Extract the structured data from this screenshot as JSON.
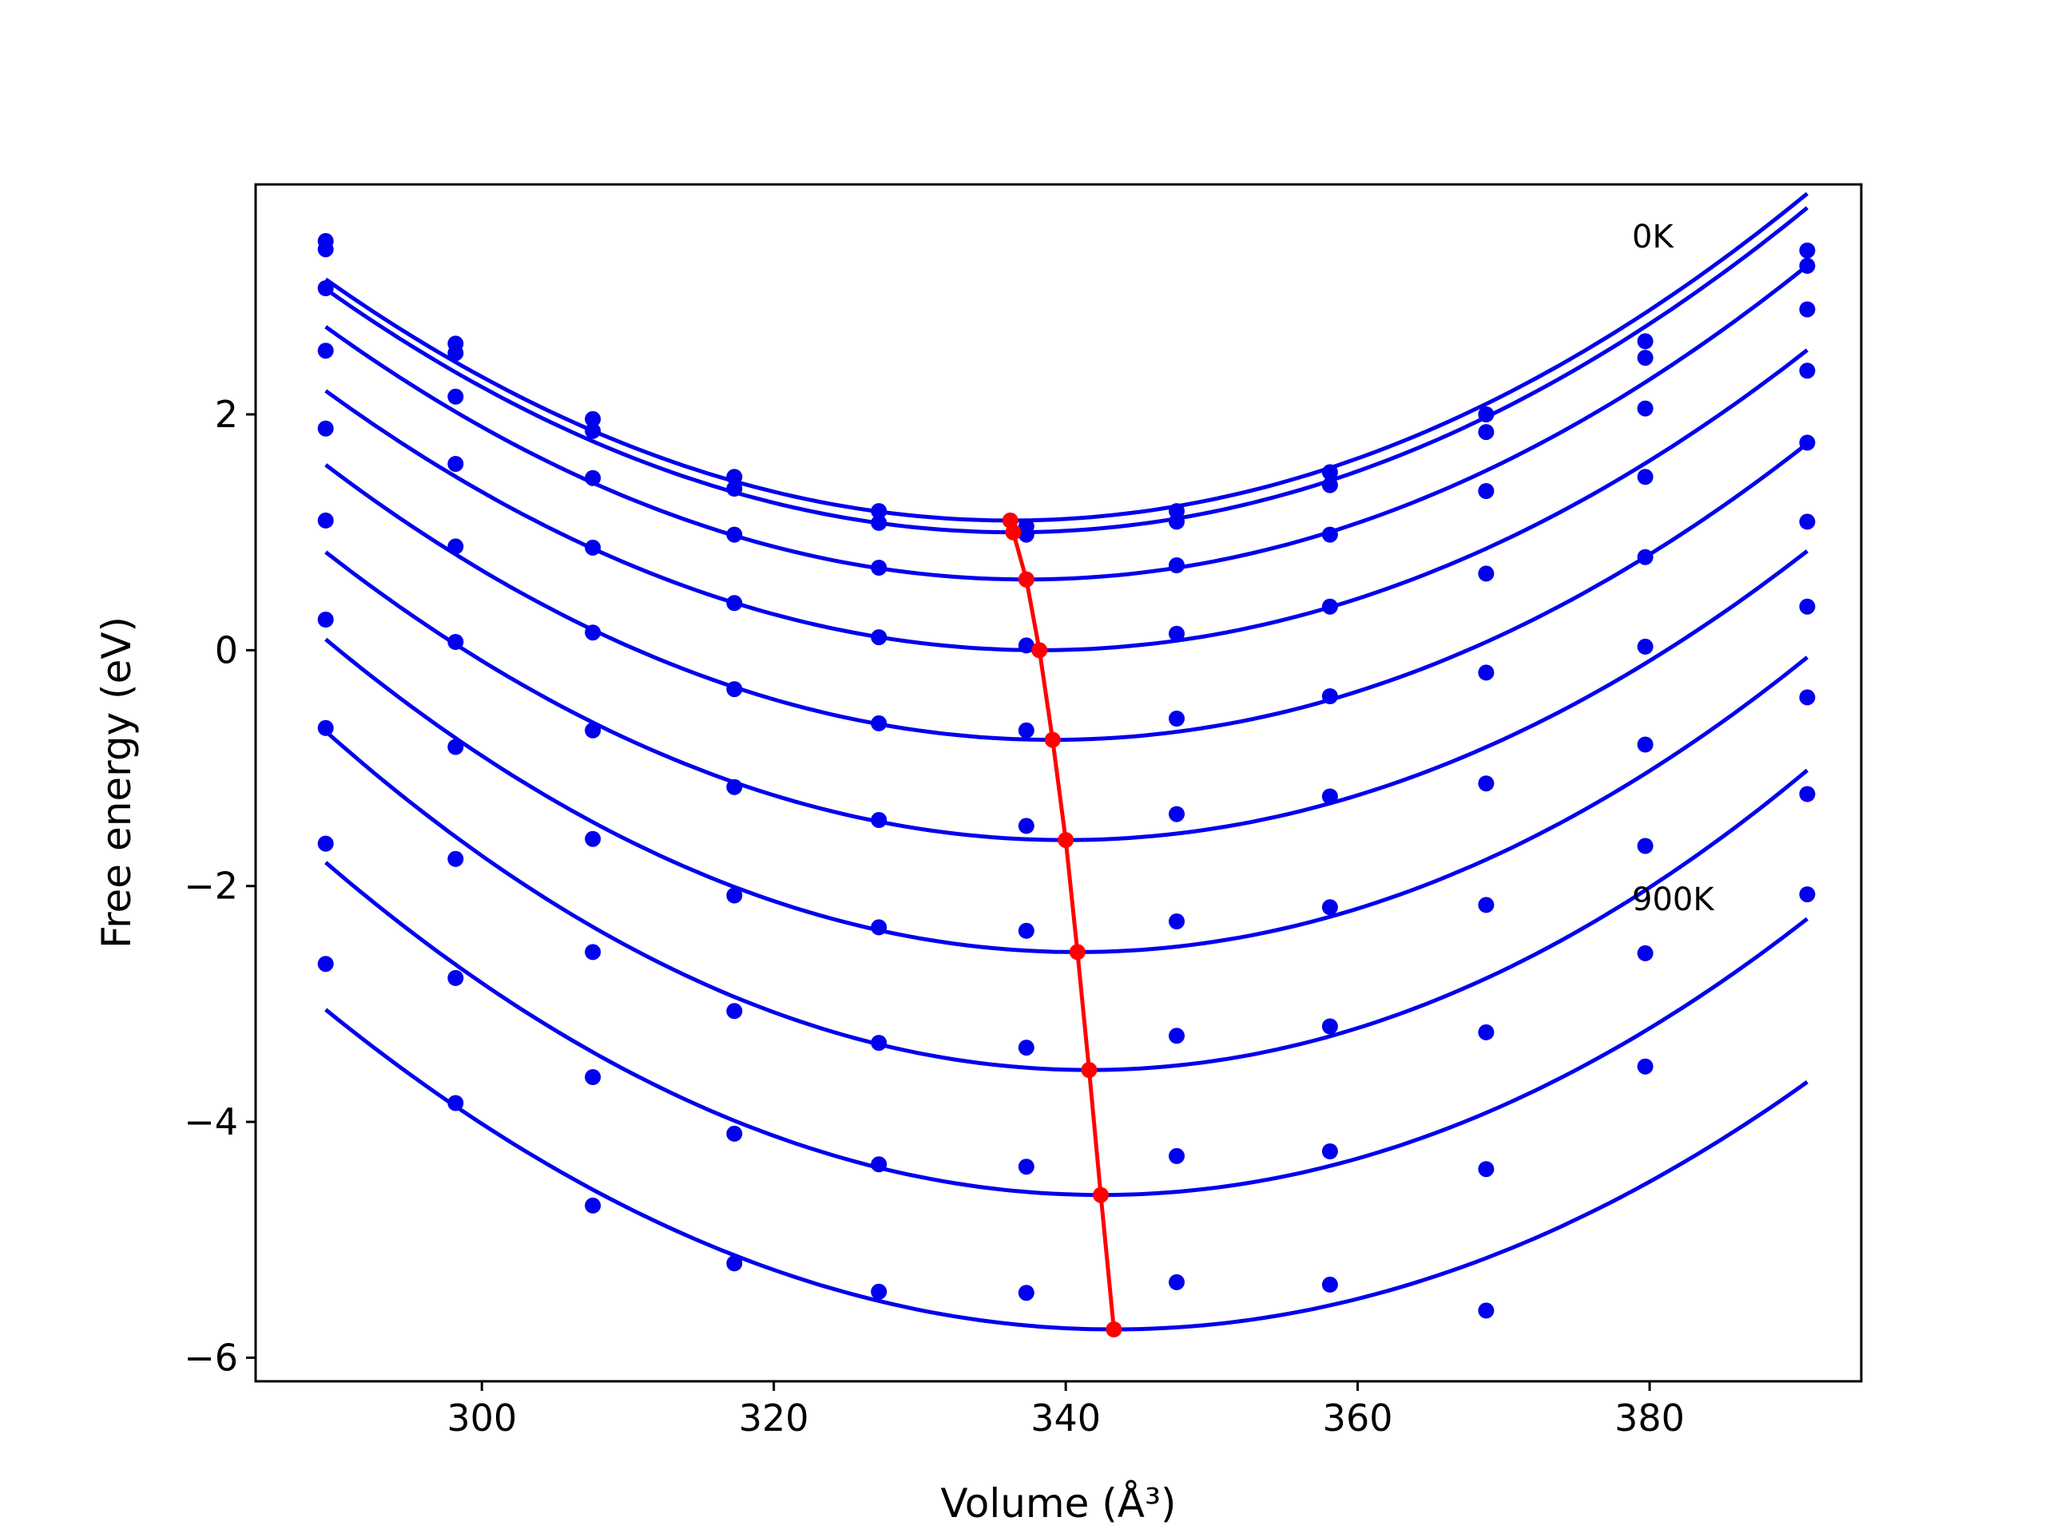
{
  "chart_data": {
    "type": "scatter",
    "title": "",
    "xlabel": "Volume",
    "xlabel_unit": "(Å³)",
    "ylabel": "Free energy (eV)",
    "xlim": [
      284.5,
      394.5
    ],
    "ylim": [
      -6.2,
      3.95
    ],
    "x_ticks": [
      300,
      320,
      340,
      360,
      380
    ],
    "x_tick_labels": [
      "300",
      "320",
      "340",
      "360",
      "380"
    ],
    "y_ticks": [
      2,
      0,
      -2,
      -4,
      -6
    ],
    "y_tick_labels": [
      "2",
      "0",
      "−2",
      "−4",
      "−6"
    ],
    "grid": false,
    "legend": "none",
    "colors": {
      "points": "#0000ee",
      "fits": "#0000ee",
      "minimum_line": "#ff0000",
      "frame": "#000000"
    },
    "annotations": [
      {
        "text": "0K",
        "x": 381.6,
        "y": 3.48
      },
      {
        "text": "900K",
        "x": 381.6,
        "y": -2.13
      }
    ],
    "volumes": [
      289.3,
      298.2,
      307.6,
      317.3,
      327.2,
      337.3,
      347.6,
      358.1,
      368.8,
      379.7,
      390.8
    ],
    "series": [
      {
        "values": [
          3.47,
          2.6,
          1.96,
          1.47,
          1.18,
          1.05,
          1.18,
          1.51,
          2.0,
          2.62,
          3.39
        ],
        "fit": {
          "x0": 336.2,
          "y0": 1.1,
          "a": 0.00093
        }
      },
      {
        "values": [
          3.4,
          2.52,
          1.86,
          1.37,
          1.08,
          0.98,
          1.09,
          1.4,
          1.85,
          2.48,
          3.26
        ],
        "fit": {
          "x0": 336.4,
          "y0": 1.0,
          "a": 0.00093
        }
      },
      {
        "values": [
          3.07,
          2.15,
          1.46,
          0.98,
          0.7,
          0.6,
          0.72,
          0.98,
          1.35,
          2.05,
          2.89
        ],
        "fit": {
          "x0": 337.3,
          "y0": 0.6,
          "a": 0.00093
        }
      },
      {
        "values": [
          2.54,
          1.58,
          0.87,
          0.4,
          0.11,
          0.04,
          0.14,
          0.37,
          0.65,
          1.47,
          2.37
        ],
        "fit": {
          "x0": 338.2,
          "y0": 0.0,
          "a": 0.00092
        }
      },
      {
        "values": [
          1.88,
          0.88,
          0.15,
          -0.33,
          -0.62,
          -0.68,
          -0.58,
          -0.39,
          -0.19,
          0.79,
          1.76
        ],
        "fit": {
          "x0": 339.1,
          "y0": -0.76,
          "a": 0.00094
        }
      },
      {
        "values": [
          1.1,
          0.07,
          -0.68,
          -1.16,
          -1.44,
          -1.49,
          -1.39,
          -1.24,
          -1.13,
          0.03,
          1.09
        ],
        "fit": {
          "x0": 340.0,
          "y0": -1.61,
          "a": 0.00095
        }
      },
      {
        "values": [
          0.26,
          -0.82,
          -1.6,
          -2.08,
          -2.35,
          -2.38,
          -2.3,
          -2.18,
          -2.16,
          -0.8,
          0.37
        ],
        "fit": {
          "x0": 340.8,
          "y0": -2.56,
          "a": 0.001
        }
      },
      {
        "values": [
          -0.66,
          -1.77,
          -2.56,
          -3.06,
          -3.33,
          -3.37,
          -3.27,
          -3.19,
          -3.24,
          -1.66,
          -0.4
        ],
        "fit": {
          "x0": 341.6,
          "y0": -3.56,
          "a": 0.00105
        }
      },
      {
        "values": [
          -1.64,
          -2.78,
          -3.62,
          -4.1,
          -4.36,
          -4.38,
          -4.29,
          -4.25,
          -4.4,
          -2.57,
          -1.22
        ],
        "fit": {
          "x0": 342.4,
          "y0": -4.62,
          "a": 0.001
        }
      },
      {
        "values": [
          -2.66,
          -3.84,
          -4.71,
          -5.2,
          -5.44,
          -5.45,
          -5.36,
          -5.38,
          -5.6,
          -3.53,
          -2.07
        ],
        "fit": {
          "x0": 343.3,
          "y0": -5.76,
          "a": 0.00093
        }
      }
    ],
    "minimum_curve": {
      "x": [
        336.2,
        336.4,
        337.3,
        338.2,
        339.1,
        340.0,
        340.8,
        341.6,
        342.4,
        343.3
      ],
      "y": [
        1.1,
        1.0,
        0.6,
        0.0,
        -0.76,
        -1.61,
        -2.56,
        -3.56,
        -4.62,
        -5.76
      ]
    }
  }
}
